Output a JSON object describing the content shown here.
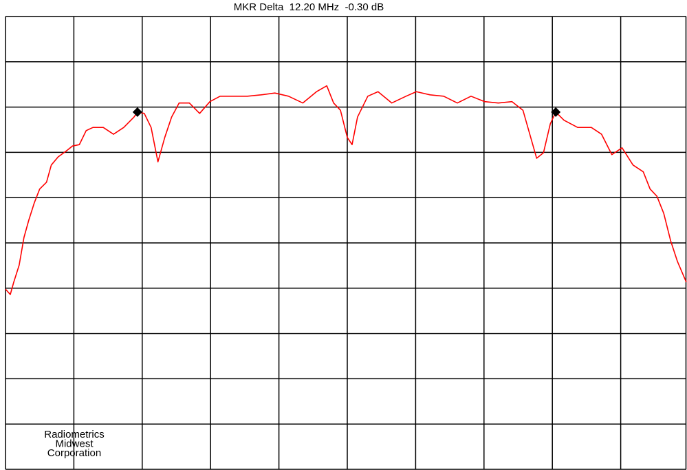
{
  "chart_data": {
    "type": "line",
    "title": "MKR Delta  12.20 MHz  -0.30 dB",
    "annotations": [
      "Radiometrics",
      "Midwest",
      "Corporation"
    ],
    "color": "#ff0000",
    "x": [
      0,
      0.07,
      0.12,
      0.2,
      0.27,
      0.34,
      0.42,
      0.5,
      0.6,
      0.67,
      0.77,
      0.88,
      0.98,
      1.08,
      1.18,
      1.28,
      1.43,
      1.58,
      1.73,
      1.88,
      1.93,
      2.03,
      2.13,
      2.23,
      2.33,
      2.43,
      2.54,
      2.69,
      2.84,
      2.99,
      3.14,
      3.34,
      3.54,
      3.74,
      3.94,
      4.14,
      4.35,
      4.55,
      4.7,
      4.8,
      4.9,
      5.0,
      5.07,
      5.15,
      5.3,
      5.45,
      5.65,
      5.86,
      6.01,
      6.21,
      6.41,
      6.61,
      6.81,
      7.01,
      7.21,
      7.41,
      7.57,
      7.67,
      7.77,
      7.87,
      7.97,
      8.05,
      8.17,
      8.37,
      8.57,
      8.72,
      8.87,
      9.02,
      9.18,
      9.33,
      9.43,
      9.53,
      9.63,
      9.73,
      9.83,
      9.96
    ],
    "values": [
      3.98,
      3.86,
      4.13,
      4.51,
      5.12,
      5.5,
      5.88,
      6.19,
      6.34,
      6.72,
      6.9,
      7.02,
      7.14,
      7.17,
      7.48,
      7.55,
      7.55,
      7.4,
      7.55,
      7.78,
      7.89,
      7.86,
      7.55,
      6.79,
      7.33,
      7.78,
      8.09,
      8.09,
      7.86,
      8.12,
      8.24,
      8.24,
      8.24,
      8.27,
      8.31,
      8.24,
      8.09,
      8.34,
      8.47,
      8.09,
      7.93,
      7.33,
      7.17,
      7.78,
      8.24,
      8.34,
      8.09,
      8.24,
      8.34,
      8.27,
      8.24,
      8.09,
      8.24,
      8.12,
      8.09,
      8.12,
      7.93,
      7.4,
      6.87,
      6.99,
      7.63,
      7.89,
      7.71,
      7.55,
      7.55,
      7.4,
      6.95,
      7.1,
      6.72,
      6.57,
      6.19,
      6.03,
      5.65,
      5.05,
      4.59,
      4.13
    ],
    "markers": {
      "x": [
        1.93,
        8.05
      ],
      "values": [
        7.89,
        7.89
      ],
      "color": "#000000"
    },
    "xlim": [
      0,
      10
    ],
    "ylim": [
      0,
      10
    ],
    "xticks": [
      0,
      1,
      2,
      3,
      4,
      5,
      6,
      7,
      8,
      9,
      10
    ],
    "yticks": [
      0,
      1,
      2,
      3,
      4,
      5,
      6,
      7,
      8,
      9,
      10
    ],
    "grid": true
  }
}
